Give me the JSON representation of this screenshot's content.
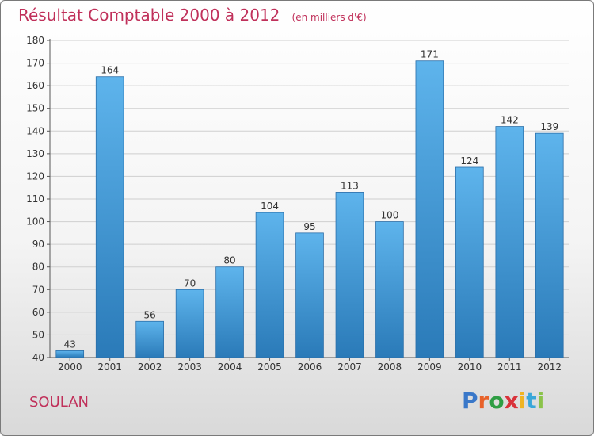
{
  "header": {
    "title": "Résultat Comptable 2000 à 2012",
    "units": "(en milliers d'€)"
  },
  "commune": "SOULAN",
  "logo": {
    "text": "Proxiti",
    "letters": [
      {
        "char": "P",
        "color": "#3a78c9"
      },
      {
        "char": "r",
        "color": "#e8622a"
      },
      {
        "char": "o",
        "color": "#2f9e44"
      },
      {
        "char": "x",
        "color": "#d9323a"
      },
      {
        "char": "i",
        "color": "#f0b422"
      },
      {
        "char": "t",
        "color": "#3aa7d9"
      },
      {
        "char": "i",
        "color": "#8bc34a"
      }
    ]
  },
  "colors": {
    "bar_light": "#5eb4ec",
    "bar_dark": "#2a7ab8",
    "title": "#c0305a",
    "axis_text": "#333333",
    "grid": "#cfcfcf"
  },
  "chart_data": {
    "type": "bar",
    "title": "Résultat Comptable 2000 à 2012",
    "xlabel": "",
    "ylabel": "",
    "categories": [
      "2000",
      "2001",
      "2002",
      "2003",
      "2004",
      "2005",
      "2006",
      "2007",
      "2008",
      "2009",
      "2010",
      "2011",
      "2012"
    ],
    "values": [
      43,
      164,
      56,
      70,
      80,
      104,
      95,
      113,
      100,
      171,
      124,
      142,
      139
    ],
    "ylim": [
      40,
      180
    ],
    "yticks": [
      40,
      50,
      60,
      70,
      80,
      90,
      100,
      110,
      120,
      130,
      140,
      150,
      160,
      170,
      180
    ],
    "grid": true,
    "legend": "none"
  }
}
